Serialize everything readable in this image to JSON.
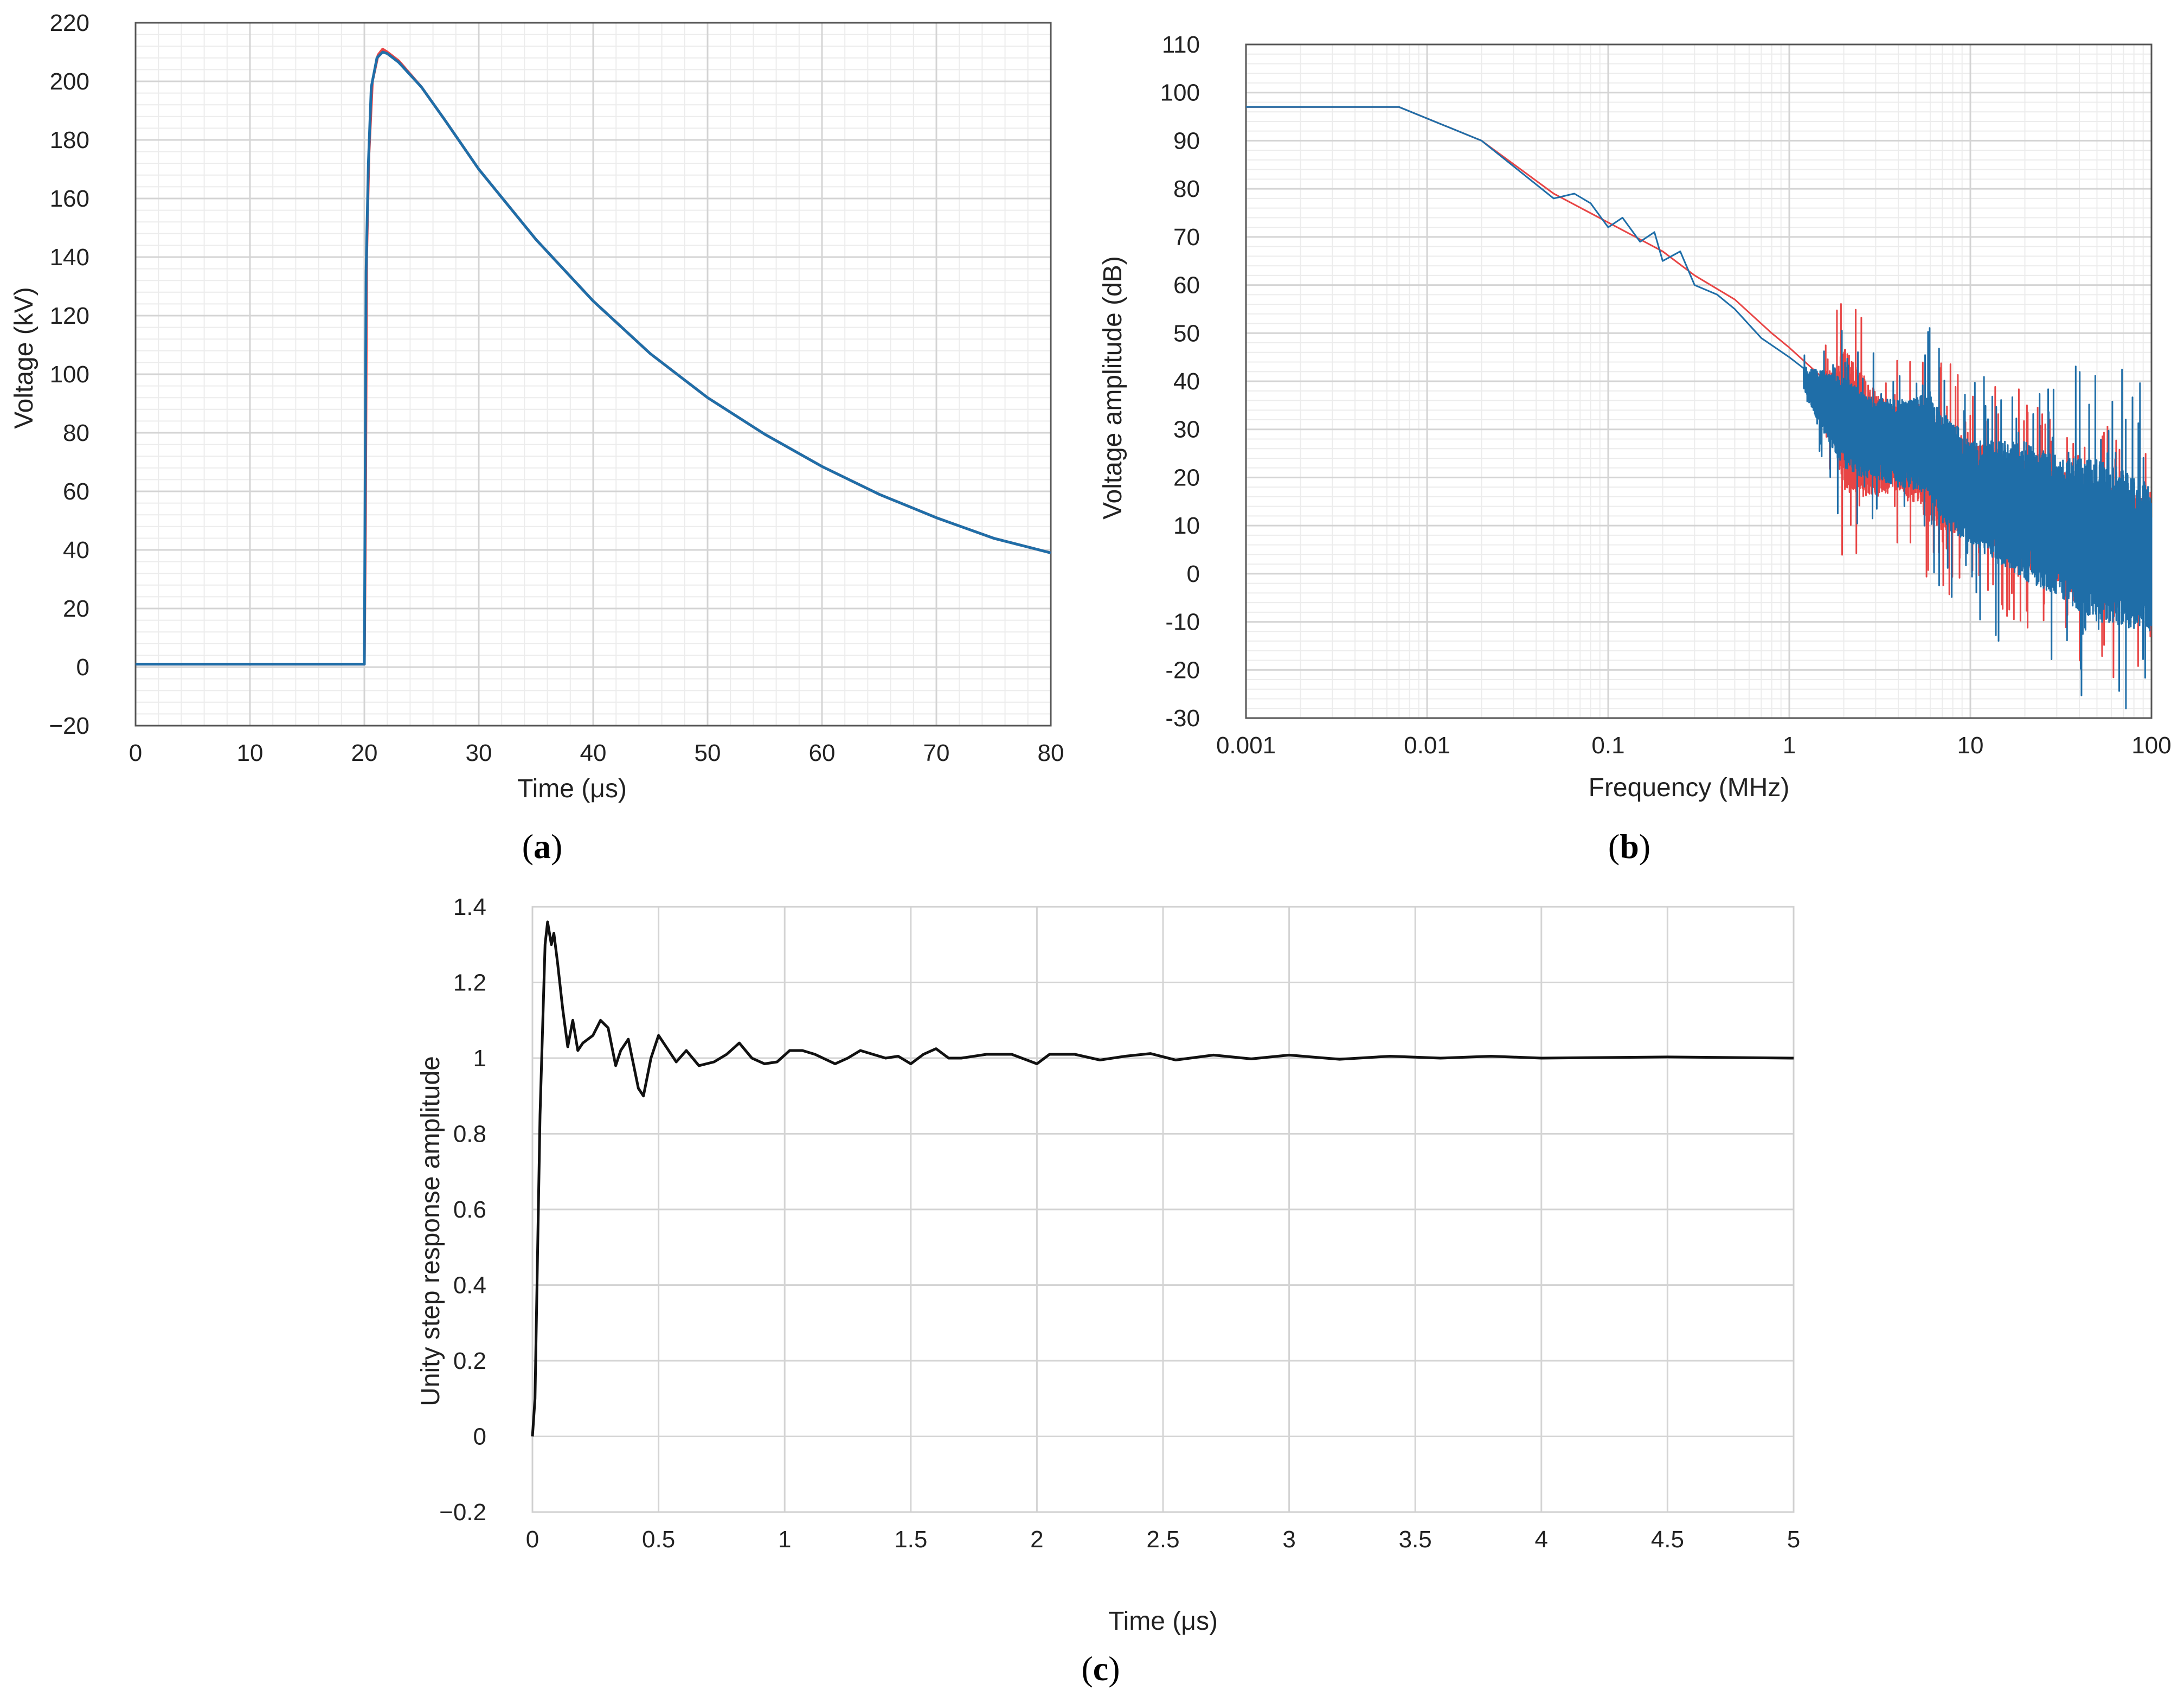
{
  "chart_data": [
    {
      "panel_label": "a",
      "type": "line",
      "xlabel": "Time (μs)",
      "ylabel": "Voltage (kV)",
      "xlim": [
        0,
        80
      ],
      "ylim": [
        -20,
        220
      ],
      "xticks": [
        0,
        10,
        20,
        30,
        40,
        50,
        60,
        70,
        80
      ],
      "yticks": [
        -20,
        0,
        20,
        40,
        60,
        80,
        100,
        120,
        140,
        160,
        180,
        200,
        220
      ],
      "ytick_labels": [
        "−20",
        "0",
        "20",
        "40",
        "60",
        "80",
        "100",
        "120",
        "140",
        "160",
        "180",
        "200",
        "220"
      ],
      "grid": true,
      "minor_grid": true,
      "series": [
        {
          "color": "#e84545",
          "points": [
            [
              0,
              1
            ],
            [
              20.0,
              1
            ],
            [
              20.1,
              52
            ],
            [
              20.2,
              140
            ],
            [
              20.4,
              175
            ],
            [
              20.7,
              200
            ],
            [
              21.2,
              209
            ],
            [
              21.6,
              211
            ],
            [
              22,
              210
            ],
            [
              23,
              207
            ],
            [
              25,
              198
            ],
            [
              27,
              187
            ],
            [
              30,
              170
            ],
            [
              35,
              146
            ],
            [
              40,
              125
            ],
            [
              45,
              107
            ],
            [
              50,
              92
            ],
            [
              55,
              79.5
            ],
            [
              60,
              68.5
            ],
            [
              65,
              59
            ],
            [
              70,
              51
            ],
            [
              75,
              44
            ],
            [
              80,
              39
            ]
          ]
        },
        {
          "color": "#1f6ea8",
          "points": [
            [
              0,
              1
            ],
            [
              20.0,
              1
            ],
            [
              20.05,
              50
            ],
            [
              20.15,
              135
            ],
            [
              20.35,
              172
            ],
            [
              20.6,
              198
            ],
            [
              21.1,
              208
            ],
            [
              21.6,
              210
            ],
            [
              22,
              209.5
            ],
            [
              23,
              206.5
            ],
            [
              25,
              198
            ],
            [
              27,
              187
            ],
            [
              30,
              170
            ],
            [
              35,
              146
            ],
            [
              40,
              125
            ],
            [
              45,
              107
            ],
            [
              50,
              92
            ],
            [
              55,
              79.5
            ],
            [
              60,
              68.5
            ],
            [
              65,
              59
            ],
            [
              70,
              51
            ],
            [
              75,
              44
            ],
            [
              80,
              39
            ]
          ]
        }
      ]
    },
    {
      "panel_label": "b",
      "type": "line",
      "xlabel": "Frequency (MHz)",
      "ylabel": "Voltage amplitude (dB)",
      "xscale": "log",
      "xlim": [
        0.001,
        100
      ],
      "ylim": [
        -30,
        110
      ],
      "xticks": [
        0.001,
        0.01,
        0.1,
        1,
        10,
        100
      ],
      "xtick_labels": [
        "0.001",
        "0.01",
        "0.1",
        "1",
        "10",
        "100"
      ],
      "yticks": [
        -30,
        -20,
        -10,
        0,
        10,
        20,
        30,
        40,
        50,
        60,
        70,
        80,
        90,
        100,
        110
      ],
      "grid": true,
      "minor_grid": true,
      "series": [
        {
          "color": "#e84545",
          "points": [
            [
              0.001,
              97
            ],
            [
              0.007,
              97
            ],
            [
              0.02,
              90
            ],
            [
              0.05,
              79
            ],
            [
              0.1,
              73
            ],
            [
              0.2,
              67
            ],
            [
              0.3,
              62
            ],
            [
              0.5,
              57
            ],
            [
              0.8,
              50
            ],
            [
              1,
              47
            ],
            [
              1.5,
              38
            ],
            [
              2,
              32
            ],
            [
              3,
              27
            ],
            [
              5,
              25
            ],
            [
              7,
              20
            ],
            [
              10,
              18
            ],
            [
              20,
              13
            ],
            [
              40,
              8
            ],
            [
              60,
              6
            ],
            [
              100,
              4
            ]
          ],
          "noise": [
            [
              1.5,
              6
            ],
            [
              1.8,
              14
            ],
            [
              2,
              25
            ],
            [
              4,
              14
            ],
            [
              6,
              20
            ],
            [
              10,
              16
            ],
            [
              20,
              18
            ],
            [
              40,
              20
            ],
            [
              60,
              22
            ],
            [
              100,
              18
            ]
          ]
        },
        {
          "color": "#1f6ea8",
          "points": [
            [
              0.001,
              97
            ],
            [
              0.007,
              97
            ],
            [
              0.02,
              90
            ],
            [
              0.05,
              78
            ],
            [
              0.065,
              79
            ],
            [
              0.08,
              77
            ],
            [
              0.1,
              72
            ],
            [
              0.12,
              74
            ],
            [
              0.15,
              69
            ],
            [
              0.18,
              71
            ],
            [
              0.2,
              65
            ],
            [
              0.25,
              67
            ],
            [
              0.3,
              60
            ],
            [
              0.4,
              58
            ],
            [
              0.5,
              55
            ],
            [
              0.7,
              49
            ],
            [
              1,
              45
            ],
            [
              1.3,
              39
            ],
            [
              1.8,
              33
            ],
            [
              2.5,
              29
            ],
            [
              4,
              27
            ],
            [
              6,
              27
            ],
            [
              7,
              22
            ],
            [
              10,
              17
            ],
            [
              20,
              13
            ],
            [
              40,
              8
            ],
            [
              60,
              6
            ],
            [
              100,
              3
            ]
          ],
          "noise": [
            [
              1.2,
              4
            ],
            [
              1.5,
              10
            ],
            [
              2,
              16
            ],
            [
              3,
              14
            ],
            [
              5,
              16
            ],
            [
              7,
              20
            ],
            [
              10,
              18
            ],
            [
              20,
              24
            ],
            [
              30,
              24
            ],
            [
              50,
              28
            ],
            [
              100,
              26
            ]
          ]
        }
      ]
    },
    {
      "panel_label": "c",
      "type": "line",
      "xlabel": "Time (μs)",
      "ylabel": "Unity step response amplitude",
      "xlim": [
        0,
        5
      ],
      "ylim": [
        -0.2,
        1.4
      ],
      "xticks": [
        0,
        0.5,
        1,
        1.5,
        2,
        2.5,
        3,
        3.5,
        4,
        4.5,
        5
      ],
      "xtick_labels": [
        "0",
        "0.5",
        "1",
        "1.5",
        "2",
        "2.5",
        "3",
        "3.5",
        "4",
        "4.5",
        "5"
      ],
      "yticks": [
        -0.2,
        0,
        0.2,
        0.4,
        0.6,
        0.8,
        1,
        1.2,
        1.4
      ],
      "ytick_labels": [
        "−0.2",
        "0",
        "0.2",
        "0.4",
        "0.6",
        "0.8",
        "1",
        "1.2",
        "1.4"
      ],
      "grid": true,
      "series": [
        {
          "color": "#111111",
          "points": [
            [
              0,
              0
            ],
            [
              0.01,
              0.1
            ],
            [
              0.03,
              0.85
            ],
            [
              0.05,
              1.3
            ],
            [
              0.06,
              1.36
            ],
            [
              0.075,
              1.3
            ],
            [
              0.085,
              1.33
            ],
            [
              0.1,
              1.25
            ],
            [
              0.12,
              1.13
            ],
            [
              0.14,
              1.03
            ],
            [
              0.16,
              1.1
            ],
            [
              0.18,
              1.02
            ],
            [
              0.2,
              1.04
            ],
            [
              0.24,
              1.06
            ],
            [
              0.27,
              1.1
            ],
            [
              0.3,
              1.08
            ],
            [
              0.33,
              0.98
            ],
            [
              0.35,
              1.02
            ],
            [
              0.38,
              1.05
            ],
            [
              0.42,
              0.92
            ],
            [
              0.44,
              0.9
            ],
            [
              0.47,
              1.0
            ],
            [
              0.5,
              1.06
            ],
            [
              0.54,
              1.02
            ],
            [
              0.57,
              0.99
            ],
            [
              0.61,
              1.02
            ],
            [
              0.66,
              0.98
            ],
            [
              0.72,
              0.99
            ],
            [
              0.77,
              1.01
            ],
            [
              0.82,
              1.04
            ],
            [
              0.87,
              1.0
            ],
            [
              0.92,
              0.985
            ],
            [
              0.97,
              0.99
            ],
            [
              1.02,
              1.02
            ],
            [
              1.07,
              1.02
            ],
            [
              1.12,
              1.01
            ],
            [
              1.2,
              0.985
            ],
            [
              1.25,
              1.0
            ],
            [
              1.3,
              1.02
            ],
            [
              1.35,
              1.01
            ],
            [
              1.4,
              1.0
            ],
            [
              1.45,
              1.005
            ],
            [
              1.5,
              0.985
            ],
            [
              1.55,
              1.01
            ],
            [
              1.6,
              1.025
            ],
            [
              1.65,
              1.0
            ],
            [
              1.7,
              1.0
            ],
            [
              1.8,
              1.01
            ],
            [
              1.9,
              1.01
            ],
            [
              2.0,
              0.985
            ],
            [
              2.05,
              1.01
            ],
            [
              2.15,
              1.01
            ],
            [
              2.25,
              0.995
            ],
            [
              2.35,
              1.005
            ],
            [
              2.45,
              1.012
            ],
            [
              2.55,
              0.995
            ],
            [
              2.7,
              1.008
            ],
            [
              2.85,
              0.998
            ],
            [
              3.0,
              1.008
            ],
            [
              3.2,
              0.997
            ],
            [
              3.4,
              1.005
            ],
            [
              3.6,
              1.0
            ],
            [
              3.8,
              1.005
            ],
            [
              4.0,
              1.0
            ],
            [
              4.5,
              1.003
            ],
            [
              5.0,
              1.0
            ]
          ]
        }
      ]
    }
  ]
}
